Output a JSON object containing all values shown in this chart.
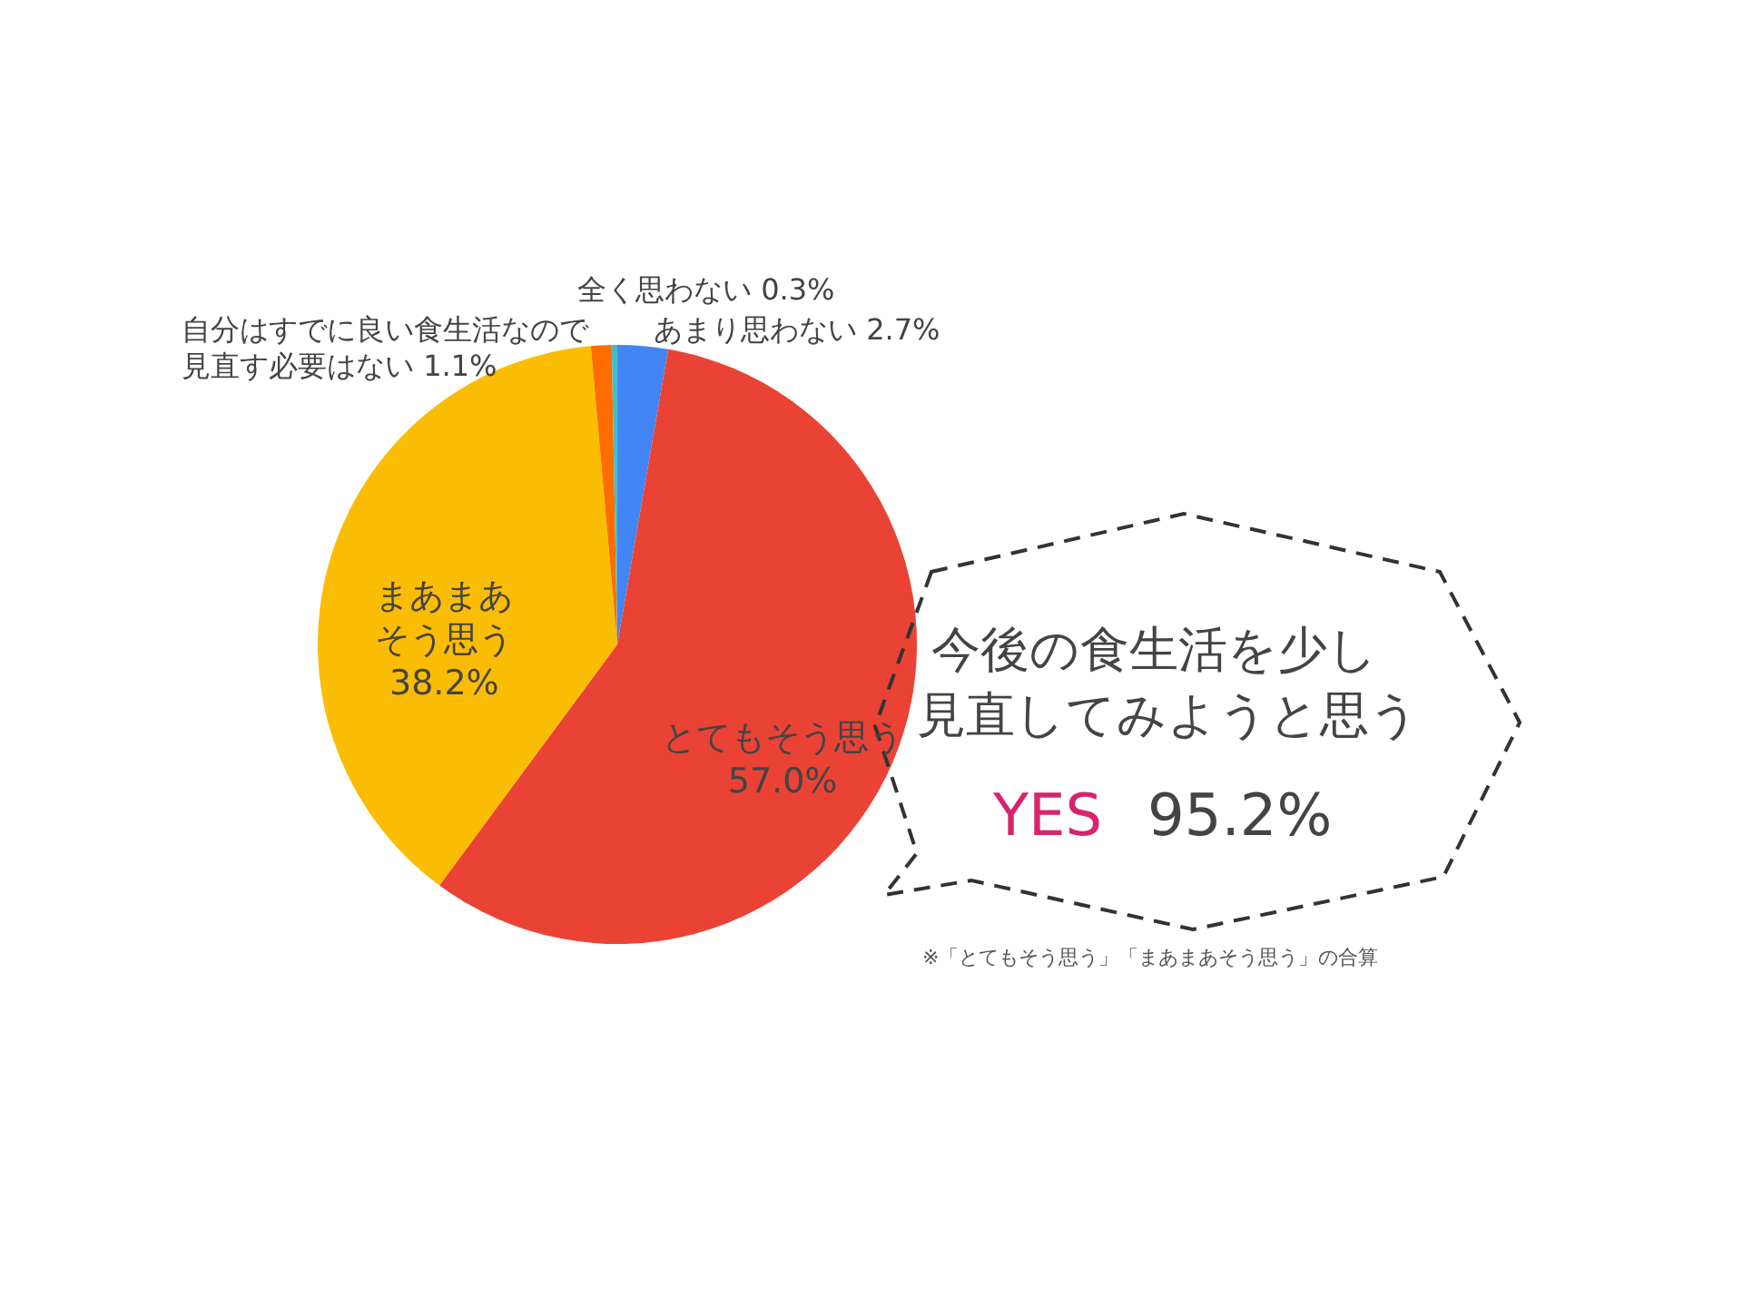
{
  "chart_data": {
    "type": "pie",
    "categories": [
      "あまり思わない",
      "とてもそう思う",
      "まあまあそう思う",
      "自分はすでに良い食生活なので見直す必要はない",
      "全く思わない"
    ],
    "values": [
      2.7,
      57.0,
      38.2,
      1.1,
      0.3
    ],
    "value_labels": [
      "2.7%",
      "57.0%",
      "38.2%",
      "1.1%",
      "0.3%"
    ],
    "colors": [
      "#4285f4",
      "#ea4335",
      "#fbbc04",
      "#ff6d01",
      "#46bdc6"
    ],
    "legend": false,
    "annotations": [
      "今後の食生活を少し",
      "見直してみようと思う",
      "YES",
      "95.2%",
      "※「とてもそう思う」「まあまあそう思う」の合算"
    ]
  }
}
